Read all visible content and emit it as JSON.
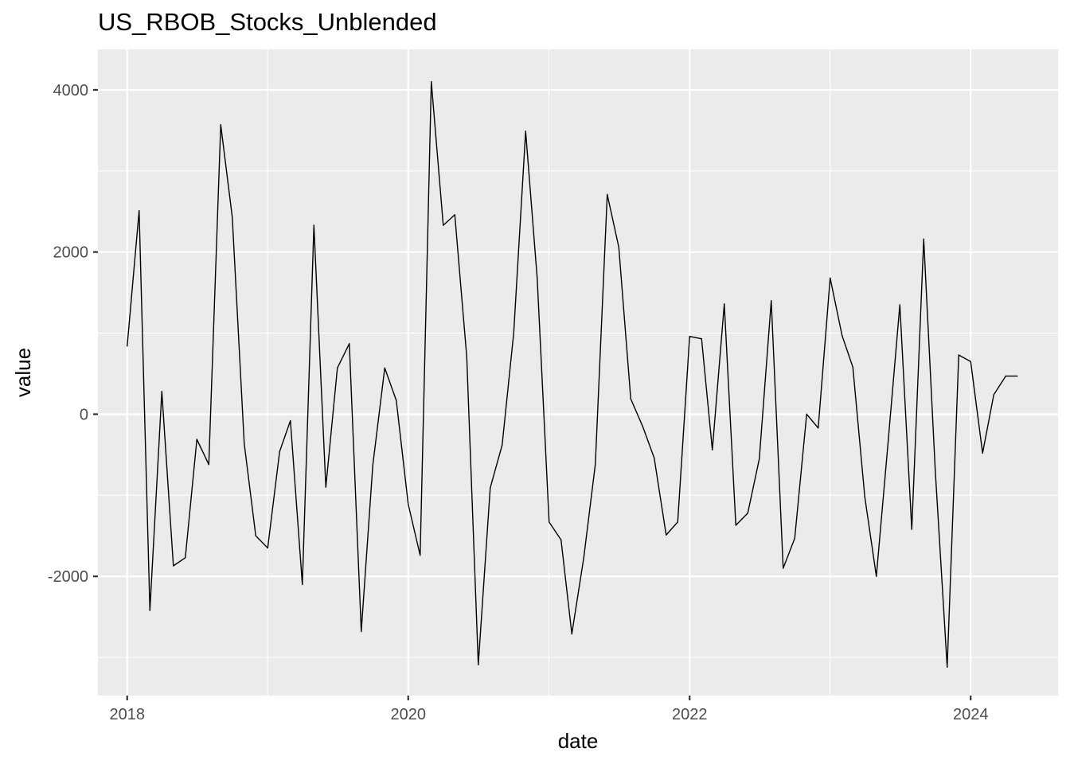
{
  "chart_data": {
    "type": "line",
    "title": "US_RBOB_Stocks_Unblended",
    "xlabel": "date",
    "ylabel": "value",
    "x_ticks": [
      "2018",
      "2020",
      "2022",
      "2024"
    ],
    "y_ticks": [
      "-2000",
      "0",
      "2000",
      "4000"
    ],
    "xlim": [
      "2017-10-17",
      "2024-08-15"
    ],
    "ylim": [
      -3470,
      4500
    ],
    "grid": true,
    "legend": "none",
    "colors": {
      "panel": "#ebebeb",
      "grid": "#ffffff",
      "line": "#000000"
    },
    "series": [
      {
        "x": [
          "2018-01-01",
          "2018-02-01",
          "2018-03-01",
          "2018-04-01",
          "2018-05-01",
          "2018-06-01",
          "2018-07-01",
          "2018-08-01",
          "2018-09-01",
          "2018-10-01",
          "2018-11-01",
          "2018-12-01",
          "2019-01-01",
          "2019-02-01",
          "2019-03-01",
          "2019-04-01",
          "2019-05-01",
          "2019-06-01",
          "2019-07-01",
          "2019-08-01",
          "2019-09-01",
          "2019-10-01",
          "2019-11-01",
          "2019-12-01",
          "2020-01-01",
          "2020-02-01",
          "2020-03-01",
          "2020-04-01",
          "2020-05-01",
          "2020-06-01",
          "2020-07-01",
          "2020-08-01",
          "2020-09-01",
          "2020-10-01",
          "2020-11-01",
          "2020-12-01",
          "2021-01-01",
          "2021-02-01",
          "2021-03-01",
          "2021-04-01",
          "2021-05-01",
          "2021-06-01",
          "2021-07-01",
          "2021-08-01",
          "2021-09-01",
          "2021-10-01",
          "2021-11-01",
          "2021-12-01",
          "2022-01-01",
          "2022-02-01",
          "2022-03-01",
          "2022-04-01",
          "2022-05-01",
          "2022-06-01",
          "2022-07-01",
          "2022-08-01",
          "2022-09-01",
          "2022-10-01",
          "2022-11-01",
          "2022-12-01",
          "2023-01-01",
          "2023-02-01",
          "2023-03-01",
          "2023-04-01",
          "2023-05-01",
          "2023-06-01",
          "2023-07-01",
          "2023-08-01",
          "2023-09-01",
          "2023-10-01",
          "2023-11-01",
          "2023-12-01",
          "2024-01-01",
          "2024-02-01",
          "2024-03-01",
          "2024-04-01",
          "2024-05-01"
        ],
        "y": [
          840,
          2510,
          -2420,
          280,
          -1870,
          -1770,
          -310,
          -620,
          3570,
          2430,
          -360,
          -1500,
          -1650,
          -460,
          -80,
          -2100,
          2330,
          -900,
          570,
          870,
          -2680,
          -630,
          570,
          170,
          -1110,
          -1740,
          4100,
          2330,
          2460,
          710,
          -3090,
          -910,
          -380,
          1000,
          3490,
          1680,
          -1330,
          -1550,
          -2710,
          -1770,
          -620,
          2710,
          2060,
          190,
          -150,
          -540,
          -1490,
          -1330,
          960,
          930,
          -440,
          1360,
          -1370,
          -1220,
          -550,
          1400,
          -1900,
          -1530,
          0,
          -170,
          1680,
          970,
          580,
          -1020,
          -2000,
          -320,
          1350,
          -1420,
          2160,
          -690,
          -3120,
          730,
          650,
          -480,
          240,
          470,
          470
        ]
      }
    ]
  }
}
